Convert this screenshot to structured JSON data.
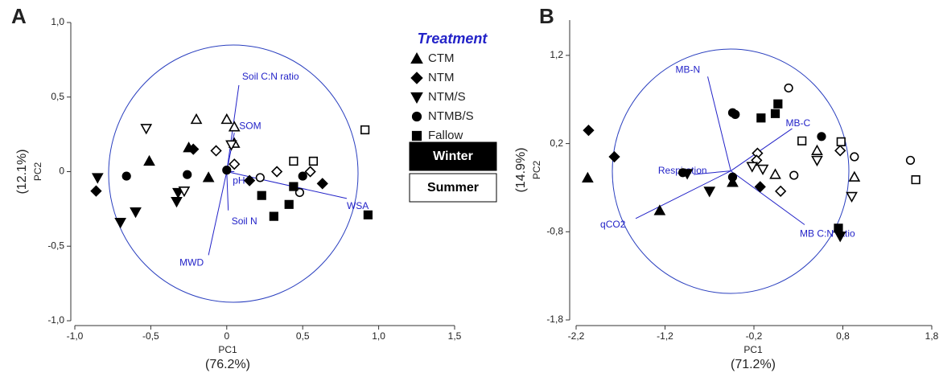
{
  "legend": {
    "title": "Treatment",
    "treatments": [
      {
        "name": "CTM",
        "shape": "triangle-up"
      },
      {
        "name": "NTM",
        "shape": "diamond"
      },
      {
        "name": "NTM/S",
        "shape": "triangle-down"
      },
      {
        "name": "NTMB/S",
        "shape": "circle"
      },
      {
        "name": "Fallow",
        "shape": "square"
      }
    ],
    "seasons": [
      {
        "name": "Winter",
        "fill": "#000000"
      },
      {
        "name": "Summer",
        "fill": "#ffffff"
      }
    ]
  },
  "chart_data": [
    {
      "type": "scatter",
      "panel": "A",
      "x_label": "PC1",
      "x_variance": "(76.2%)",
      "y_label": "PC2",
      "y_variance": "(12.1%)",
      "xlim": [
        -1.0,
        1.5
      ],
      "ylim": [
        -1.0,
        1.0
      ],
      "xticks": [
        {
          "value": -1.0,
          "label": "-1,0"
        },
        {
          "value": -0.5,
          "label": "-0,5"
        },
        0,
        {
          "value": 0.5,
          "label": "0,5"
        },
        {
          "value": 1.0,
          "label": "1,0"
        },
        {
          "value": 1.5,
          "label": "1,5"
        }
      ],
      "yticks": [
        {
          "value": -1.0,
          "label": "-1,0"
        },
        {
          "value": -0.5,
          "label": "-0,5"
        },
        0,
        {
          "value": 0.5,
          "label": "0,5"
        },
        {
          "value": 1.0,
          "label": "1,0"
        }
      ],
      "vector_color": "#2323c8",
      "loading_origin": [
        0,
        0
      ],
      "loadings": [
        {
          "label": "Soil C:N ratio",
          "x": 0.08,
          "y": 0.58
        },
        {
          "label": "SOM",
          "x": 0.05,
          "y": 0.26
        },
        {
          "label": "pH",
          "x": 0.05,
          "y": 0.0
        },
        {
          "label": "Soil N",
          "x": 0.01,
          "y": -0.26
        },
        {
          "label": "MWD",
          "x": -0.12,
          "y": -0.56
        },
        {
          "label": "WSA",
          "x": 0.79,
          "y": -0.18
        }
      ],
      "series": [
        {
          "treatment": "CTM",
          "season": "Winter",
          "x": [
            -0.51,
            -0.25,
            -0.12
          ],
          "y": [
            0.07,
            0.16,
            -0.04
          ]
        },
        {
          "treatment": "CTM",
          "season": "Summer",
          "x": [
            -0.2,
            0.0,
            0.05,
            0.05
          ],
          "y": [
            0.35,
            0.35,
            0.3,
            0.19
          ]
        },
        {
          "treatment": "NTM",
          "season": "Winter",
          "x": [
            -0.86,
            -0.22,
            0.15,
            0.63
          ],
          "y": [
            -0.13,
            0.15,
            -0.06,
            -0.08
          ]
        },
        {
          "treatment": "NTM",
          "season": "Summer",
          "x": [
            -0.07,
            0.05,
            0.33,
            0.55
          ],
          "y": [
            0.14,
            0.05,
            0.0,
            0.0
          ]
        },
        {
          "treatment": "NTM/S",
          "season": "Winter",
          "x": [
            -0.85,
            -0.7,
            -0.6,
            -0.32,
            -0.33
          ],
          "y": [
            -0.04,
            -0.34,
            -0.27,
            -0.14,
            -0.2
          ]
        },
        {
          "treatment": "NTM/S",
          "season": "Summer",
          "x": [
            -0.53,
            -0.28,
            0.03
          ],
          "y": [
            0.29,
            -0.13,
            0.18
          ]
        },
        {
          "treatment": "NTMB/S",
          "season": "Winter",
          "x": [
            -0.66,
            -0.26,
            0.0,
            0.5
          ],
          "y": [
            -0.03,
            -0.02,
            0.01,
            -0.03
          ]
        },
        {
          "treatment": "NTMB/S",
          "season": "Summer",
          "x": [
            0.22,
            0.48
          ],
          "y": [
            -0.04,
            -0.14
          ]
        },
        {
          "treatment": "Fallow",
          "season": "Winter",
          "x": [
            0.23,
            0.31,
            0.41,
            0.44,
            0.93
          ],
          "y": [
            -0.16,
            -0.3,
            -0.22,
            -0.1,
            -0.29
          ]
        },
        {
          "treatment": "Fallow",
          "season": "Summer",
          "x": [
            0.44,
            0.57,
            0.91
          ],
          "y": [
            0.07,
            0.07,
            0.28
          ]
        }
      ]
    },
    {
      "type": "scatter",
      "panel": "B",
      "x_label": "PC1",
      "x_variance": "(71.2%)",
      "y_label": "PC2",
      "y_variance": "(14.9%)",
      "xlim": [
        -2.2,
        1.8
      ],
      "ylim": [
        -1.8,
        1.6
      ],
      "xticks": [
        {
          "value": -2.2,
          "label": "-2,2"
        },
        {
          "value": -1.2,
          "label": "-1,2"
        },
        {
          "value": -0.2,
          "label": "-0,2"
        },
        {
          "value": 0.8,
          "label": "0,8"
        },
        {
          "value": 1.8,
          "label": "1,8"
        }
      ],
      "yticks": [
        {
          "value": -1.8,
          "label": "-1,8"
        },
        {
          "value": -0.8,
          "label": "-0,8"
        },
        {
          "value": 0.2,
          "label": "0,2"
        },
        {
          "value": 1.2,
          "label": "1,2"
        }
      ],
      "vector_color": "#2323c8",
      "loading_origin": [
        -0.46,
        -0.11
      ],
      "loadings": [
        {
          "label": "MB-N",
          "x": -0.72,
          "y": 0.96
        },
        {
          "label": "MB-C",
          "x": 0.23,
          "y": 0.37
        },
        {
          "label": "Respiration",
          "x": -0.88,
          "y": -0.15
        },
        {
          "label": "qCO2",
          "x": -1.53,
          "y": -0.65
        },
        {
          "label": "MB C:N ratio",
          "x": 0.37,
          "y": -0.72
        }
      ],
      "series": [
        {
          "treatment": "CTM",
          "season": "Winter",
          "x": [
            -2.07,
            -1.26,
            -0.44
          ],
          "y": [
            -0.19,
            -0.56,
            -0.24
          ]
        },
        {
          "treatment": "CTM",
          "season": "Summer",
          "x": [
            0.04,
            0.51,
            0.93
          ],
          "y": [
            -0.15,
            0.12,
            -0.18
          ]
        },
        {
          "treatment": "NTM",
          "season": "Winter",
          "x": [
            -2.06,
            -1.77,
            -0.13
          ],
          "y": [
            0.35,
            0.05,
            -0.29
          ]
        },
        {
          "treatment": "NTM",
          "season": "Summer",
          "x": [
            -0.16,
            -0.17,
            0.1,
            0.77
          ],
          "y": [
            0.09,
            0.01,
            -0.34,
            0.12
          ]
        },
        {
          "treatment": "NTM/S",
          "season": "Winter",
          "x": [
            -0.95,
            -0.7,
            0.77
          ],
          "y": [
            -0.14,
            -0.34,
            -0.85
          ]
        },
        {
          "treatment": "NTM/S",
          "season": "Summer",
          "x": [
            -0.22,
            -0.1,
            0.51,
            0.9
          ],
          "y": [
            -0.06,
            -0.09,
            0.01,
            -0.4
          ]
        },
        {
          "treatment": "NTMB/S",
          "season": "Winter",
          "x": [
            -1.0,
            -0.44,
            -0.41,
            -0.44,
            0.56
          ],
          "y": [
            -0.13,
            0.55,
            0.53,
            -0.18,
            0.28
          ]
        },
        {
          "treatment": "NTMB/S",
          "season": "Summer",
          "x": [
            0.19,
            0.25,
            0.93,
            1.56
          ],
          "y": [
            0.83,
            -0.16,
            0.05,
            0.01
          ]
        },
        {
          "treatment": "Fallow",
          "season": "Winter",
          "x": [
            -0.12,
            0.04,
            0.07,
            0.75
          ],
          "y": [
            0.49,
            0.54,
            0.65,
            -0.76
          ]
        },
        {
          "treatment": "Fallow",
          "season": "Summer",
          "x": [
            0.34,
            0.78,
            1.62
          ],
          "y": [
            0.23,
            0.22,
            -0.21
          ]
        }
      ]
    }
  ]
}
